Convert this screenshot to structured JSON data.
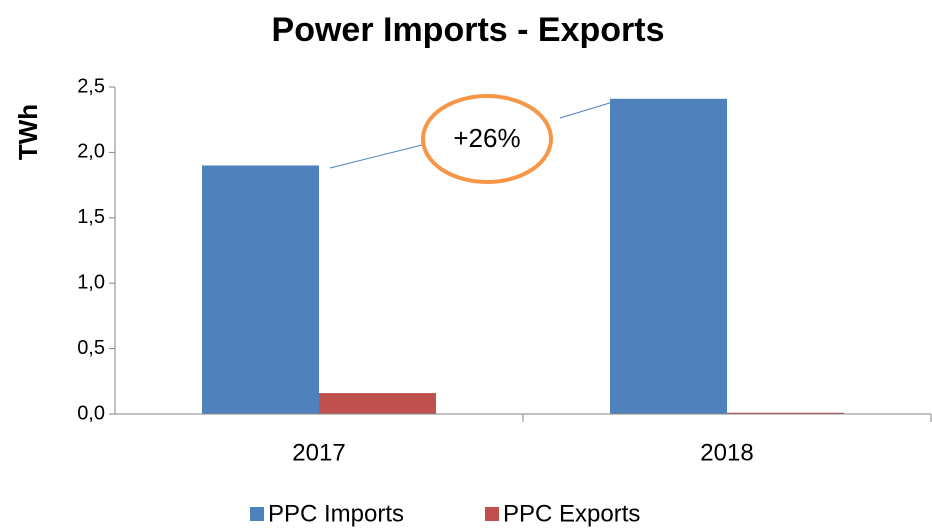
{
  "chart_data": {
    "type": "bar",
    "title": "Power Imports - Exports",
    "y_label": "TWh",
    "categories": [
      "2017",
      "2018"
    ],
    "series": [
      {
        "name": "PPC Imports",
        "color": "#4f81bd",
        "values": [
          1.9,
          2.41
        ]
      },
      {
        "name": "PPC Exports",
        "color": "#c0504d",
        "values": [
          0.16,
          0.01
        ]
      }
    ],
    "ylim": [
      0,
      2.5
    ],
    "yticks": [
      {
        "value": 0,
        "label": "0,0"
      },
      {
        "value": 0.5,
        "label": "0,5"
      },
      {
        "value": 1,
        "label": "1,0"
      },
      {
        "value": 1.5,
        "label": "1,5"
      },
      {
        "value": 2,
        "label": "2,0"
      },
      {
        "value": 2.5,
        "label": "2,5"
      }
    ],
    "annotation": "+26%",
    "annotation_color": "#f79646"
  }
}
